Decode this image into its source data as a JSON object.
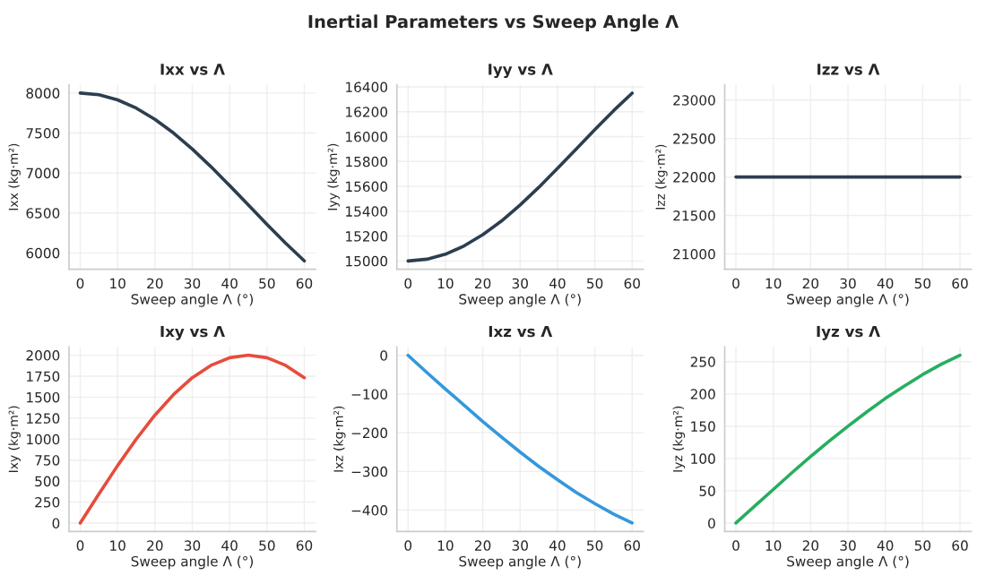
{
  "chart_data": [
    {
      "type": "line",
      "title": "Ixx vs Λ",
      "annotations": [
        "Inertial Parameters vs Sweep Angle Λ"
      ],
      "xlabel": "Sweep angle Λ (°)",
      "ylabel": "Ixx (kg·m²)",
      "x": [
        0,
        5,
        10,
        15,
        20,
        25,
        30,
        35,
        40,
        45,
        50,
        55,
        60
      ],
      "series": [
        {
          "color": "#2c3e50",
          "values": [
            8000,
            7979,
            7915,
            7812,
            7672,
            7500,
            7300,
            7079,
            6843,
            6600,
            6357,
            6121,
            5900
          ]
        }
      ],
      "xlim": [
        -3,
        63
      ],
      "xticks": [
        0,
        10,
        20,
        30,
        40,
        50,
        60
      ],
      "ylim": [
        5795,
        8105
      ],
      "yticks": [
        6000,
        6500,
        7000,
        7500,
        8000
      ],
      "grid": true,
      "marker": "none",
      "line_style": "solid"
    },
    {
      "type": "line",
      "title": "Iyy vs Λ",
      "xlabel": "Sweep angle Λ (°)",
      "ylabel": "Iyy (kg·m²)",
      "x": [
        0,
        5,
        10,
        15,
        20,
        25,
        30,
        35,
        40,
        45,
        50,
        55,
        60
      ],
      "series": [
        {
          "color": "#2c3e50",
          "values": [
            15000,
            15014,
            15054,
            15121,
            15211,
            15321,
            15450,
            15592,
            15744,
            15900,
            16056,
            16208,
            16350
          ]
        }
      ],
      "xlim": [
        -3,
        63
      ],
      "xticks": [
        0,
        10,
        20,
        30,
        40,
        50,
        60
      ],
      "ylim": [
        14933,
        16418
      ],
      "yticks": [
        15000,
        15200,
        15400,
        15600,
        15800,
        16000,
        16200,
        16400
      ],
      "grid": true,
      "marker": "none",
      "line_style": "solid"
    },
    {
      "type": "line",
      "title": "Izz vs Λ",
      "xlabel": "Sweep angle Λ (°)",
      "ylabel": "Izz (kg·m²)",
      "x": [
        0,
        5,
        10,
        15,
        20,
        25,
        30,
        35,
        40,
        45,
        50,
        55,
        60
      ],
      "series": [
        {
          "color": "#2c3e50",
          "values": [
            22000,
            22000,
            22000,
            22000,
            22000,
            22000,
            22000,
            22000,
            22000,
            22000,
            22000,
            22000,
            22000
          ]
        }
      ],
      "xlim": [
        -3,
        63
      ],
      "xticks": [
        0,
        10,
        20,
        30,
        40,
        50,
        60
      ],
      "ylim": [
        20800,
        23200
      ],
      "yticks": [
        21000,
        21500,
        22000,
        22500,
        23000
      ],
      "grid": true,
      "marker": "none",
      "line_style": "solid"
    },
    {
      "type": "line",
      "title": "Ixy vs Λ",
      "xlabel": "Sweep angle Λ (°)",
      "ylabel": "Ixy (kg·m²)",
      "x": [
        0,
        5,
        10,
        15,
        20,
        25,
        30,
        35,
        40,
        45,
        50,
        55,
        60
      ],
      "series": [
        {
          "color": "#e74c3c",
          "values": [
            0,
            347,
            684,
            1000,
            1286,
            1532,
            1732,
            1879,
            1970,
            2000,
            1970,
            1879,
            1732
          ]
        }
      ],
      "xlim": [
        -3,
        63
      ],
      "xticks": [
        0,
        10,
        20,
        30,
        40,
        50,
        60
      ],
      "ylim": [
        -100,
        2100
      ],
      "yticks": [
        0,
        250,
        500,
        750,
        1000,
        1250,
        1500,
        1750,
        2000
      ],
      "grid": true,
      "marker": "none",
      "line_style": "solid"
    },
    {
      "type": "line",
      "title": "Ixz vs Λ",
      "xlabel": "Sweep angle Λ (°)",
      "ylabel": "Ixz (kg·m²)",
      "x": [
        0,
        5,
        10,
        15,
        20,
        25,
        30,
        35,
        40,
        45,
        50,
        55,
        60
      ],
      "series": [
        {
          "color": "#3498db",
          "values": [
            0,
            -44,
            -87,
            -129,
            -171,
            -211,
            -250,
            -287,
            -321,
            -354,
            -383,
            -410,
            -433
          ]
        }
      ],
      "xlim": [
        -3,
        63
      ],
      "xticks": [
        0,
        10,
        20,
        30,
        40,
        50,
        60
      ],
      "ylim": [
        -455,
        22
      ],
      "yticks": [
        {
          "value": -400,
          "label": "−400"
        },
        {
          "value": -300,
          "label": "−300"
        },
        {
          "value": -200,
          "label": "−200"
        },
        {
          "value": -100,
          "label": "−100"
        },
        0
      ],
      "grid": true,
      "marker": "none",
      "line_style": "solid"
    },
    {
      "type": "line",
      "title": "Iyz vs Λ",
      "xlabel": "Sweep angle Λ (°)",
      "ylabel": "Iyz (kg·m²)",
      "x": [
        0,
        5,
        10,
        15,
        20,
        25,
        30,
        35,
        40,
        45,
        50,
        55,
        60
      ],
      "series": [
        {
          "color": "#27ae60",
          "values": [
            0,
            26,
            52,
            78,
            103,
            127,
            150,
            172,
            193,
            212,
            230,
            246,
            260
          ]
        }
      ],
      "xlim": [
        -3,
        63
      ],
      "xticks": [
        0,
        10,
        20,
        30,
        40,
        50,
        60
      ],
      "ylim": [
        -13,
        273
      ],
      "yticks": [
        0,
        50,
        100,
        150,
        200,
        250
      ],
      "grid": true,
      "marker": "none",
      "line_style": "solid"
    }
  ]
}
